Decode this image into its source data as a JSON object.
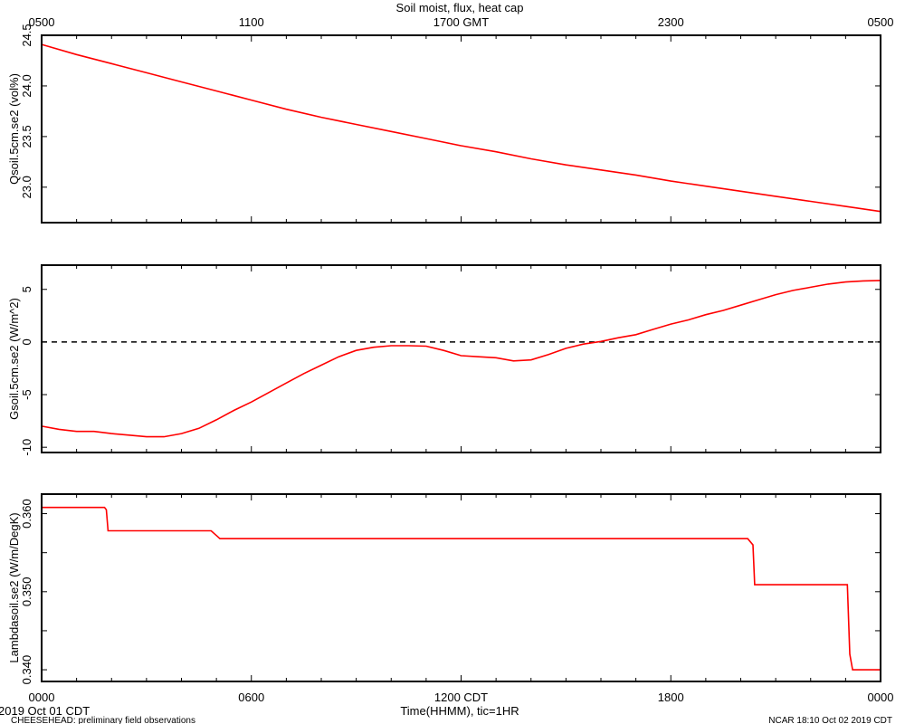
{
  "figure": {
    "title": "Soil moist, flux, heat cap",
    "footer_left_date": "2019 Oct 01 CDT",
    "footer_left_note": "CHEESEHEAD: preliminary field observations",
    "footer_right": "NCAR 18:10 Oct 02 2019 CDT",
    "x_label": "Time(HHMM), tic=1HR",
    "top_axis_ticks": [
      "0500",
      "1100",
      "1700 GMT",
      "2300",
      "0500"
    ],
    "bottom_axis_ticks": [
      "0000",
      "0600",
      "1200 CDT",
      "1800",
      "0000"
    ],
    "series_color": "#ff0000"
  },
  "chart_data": [
    {
      "type": "line",
      "ylabel": "Qsoil.5cm.se2 (vol%)",
      "ylim": [
        22.65,
        24.5
      ],
      "yticks": [
        23.0,
        23.5,
        24.0,
        24.5
      ],
      "ytick_labels": [
        "23.0",
        "23.5",
        "24.0",
        "24.5"
      ],
      "xlim": [
        0,
        24
      ],
      "x": [
        0,
        1,
        2,
        3,
        4,
        5,
        6,
        7,
        8,
        9,
        10,
        11,
        12,
        13,
        14,
        15,
        16,
        17,
        18,
        19,
        20,
        21,
        22,
        23,
        24
      ],
      "y": [
        24.41,
        24.31,
        24.22,
        24.13,
        24.04,
        23.95,
        23.86,
        23.77,
        23.69,
        23.62,
        23.55,
        23.48,
        23.41,
        23.35,
        23.28,
        23.22,
        23.17,
        23.12,
        23.06,
        23.01,
        22.96,
        22.91,
        22.86,
        22.81,
        22.76
      ]
    },
    {
      "type": "line",
      "ylabel": "Gsoil.5cm.se2 (W/m^2)",
      "ylim": [
        -10.5,
        7.3
      ],
      "yticks": [
        -10,
        -5,
        0,
        5
      ],
      "ytick_labels": [
        "-10",
        "-5",
        "0",
        "5"
      ],
      "xlim": [
        0,
        24
      ],
      "reference_line": 0,
      "x": [
        0,
        0.5,
        1,
        1.5,
        2,
        2.5,
        3,
        3.5,
        4,
        4.5,
        5,
        5.5,
        6,
        6.5,
        7,
        7.5,
        8,
        8.5,
        9,
        9.5,
        10,
        10.5,
        11,
        11.5,
        12,
        12.5,
        13,
        13.5,
        14,
        14.5,
        15,
        15.5,
        16,
        16.5,
        17,
        17.5,
        18,
        18.5,
        19,
        19.5,
        20,
        20.5,
        21,
        21.5,
        22,
        22.5,
        23,
        23.5,
        24
      ],
      "y": [
        -8.0,
        -8.3,
        -8.5,
        -8.5,
        -8.7,
        -8.85,
        -9.0,
        -9.0,
        -8.7,
        -8.2,
        -7.4,
        -6.5,
        -5.7,
        -4.8,
        -3.9,
        -3.0,
        -2.2,
        -1.4,
        -0.8,
        -0.5,
        -0.35,
        -0.35,
        -0.4,
        -0.8,
        -1.3,
        -1.4,
        -1.5,
        -1.8,
        -1.7,
        -1.2,
        -0.6,
        -0.2,
        0.05,
        0.4,
        0.7,
        1.2,
        1.7,
        2.1,
        2.6,
        3.0,
        3.5,
        4.0,
        4.5,
        4.9,
        5.2,
        5.5,
        5.7,
        5.8,
        5.85
      ]
    },
    {
      "type": "line",
      "ylabel": "Lambdasoil.se2 (W/m/DegK)",
      "ylim": [
        0.3385,
        0.3625
      ],
      "yticks": [
        0.34,
        0.345,
        0.35,
        0.355,
        0.36
      ],
      "ytick_labels": [
        "0.340",
        "",
        "0.350",
        "",
        "0.360"
      ],
      "xlim": [
        0,
        24
      ],
      "x": [
        0,
        1.8,
        1.85,
        1.9,
        4.85,
        5.0,
        5.1,
        20.2,
        20.35,
        20.4,
        23.05,
        23.12,
        23.2,
        24
      ],
      "y": [
        0.3608,
        0.3608,
        0.3605,
        0.3578,
        0.3578,
        0.3572,
        0.3568,
        0.3568,
        0.356,
        0.3509,
        0.3509,
        0.342,
        0.34,
        0.34
      ]
    }
  ]
}
